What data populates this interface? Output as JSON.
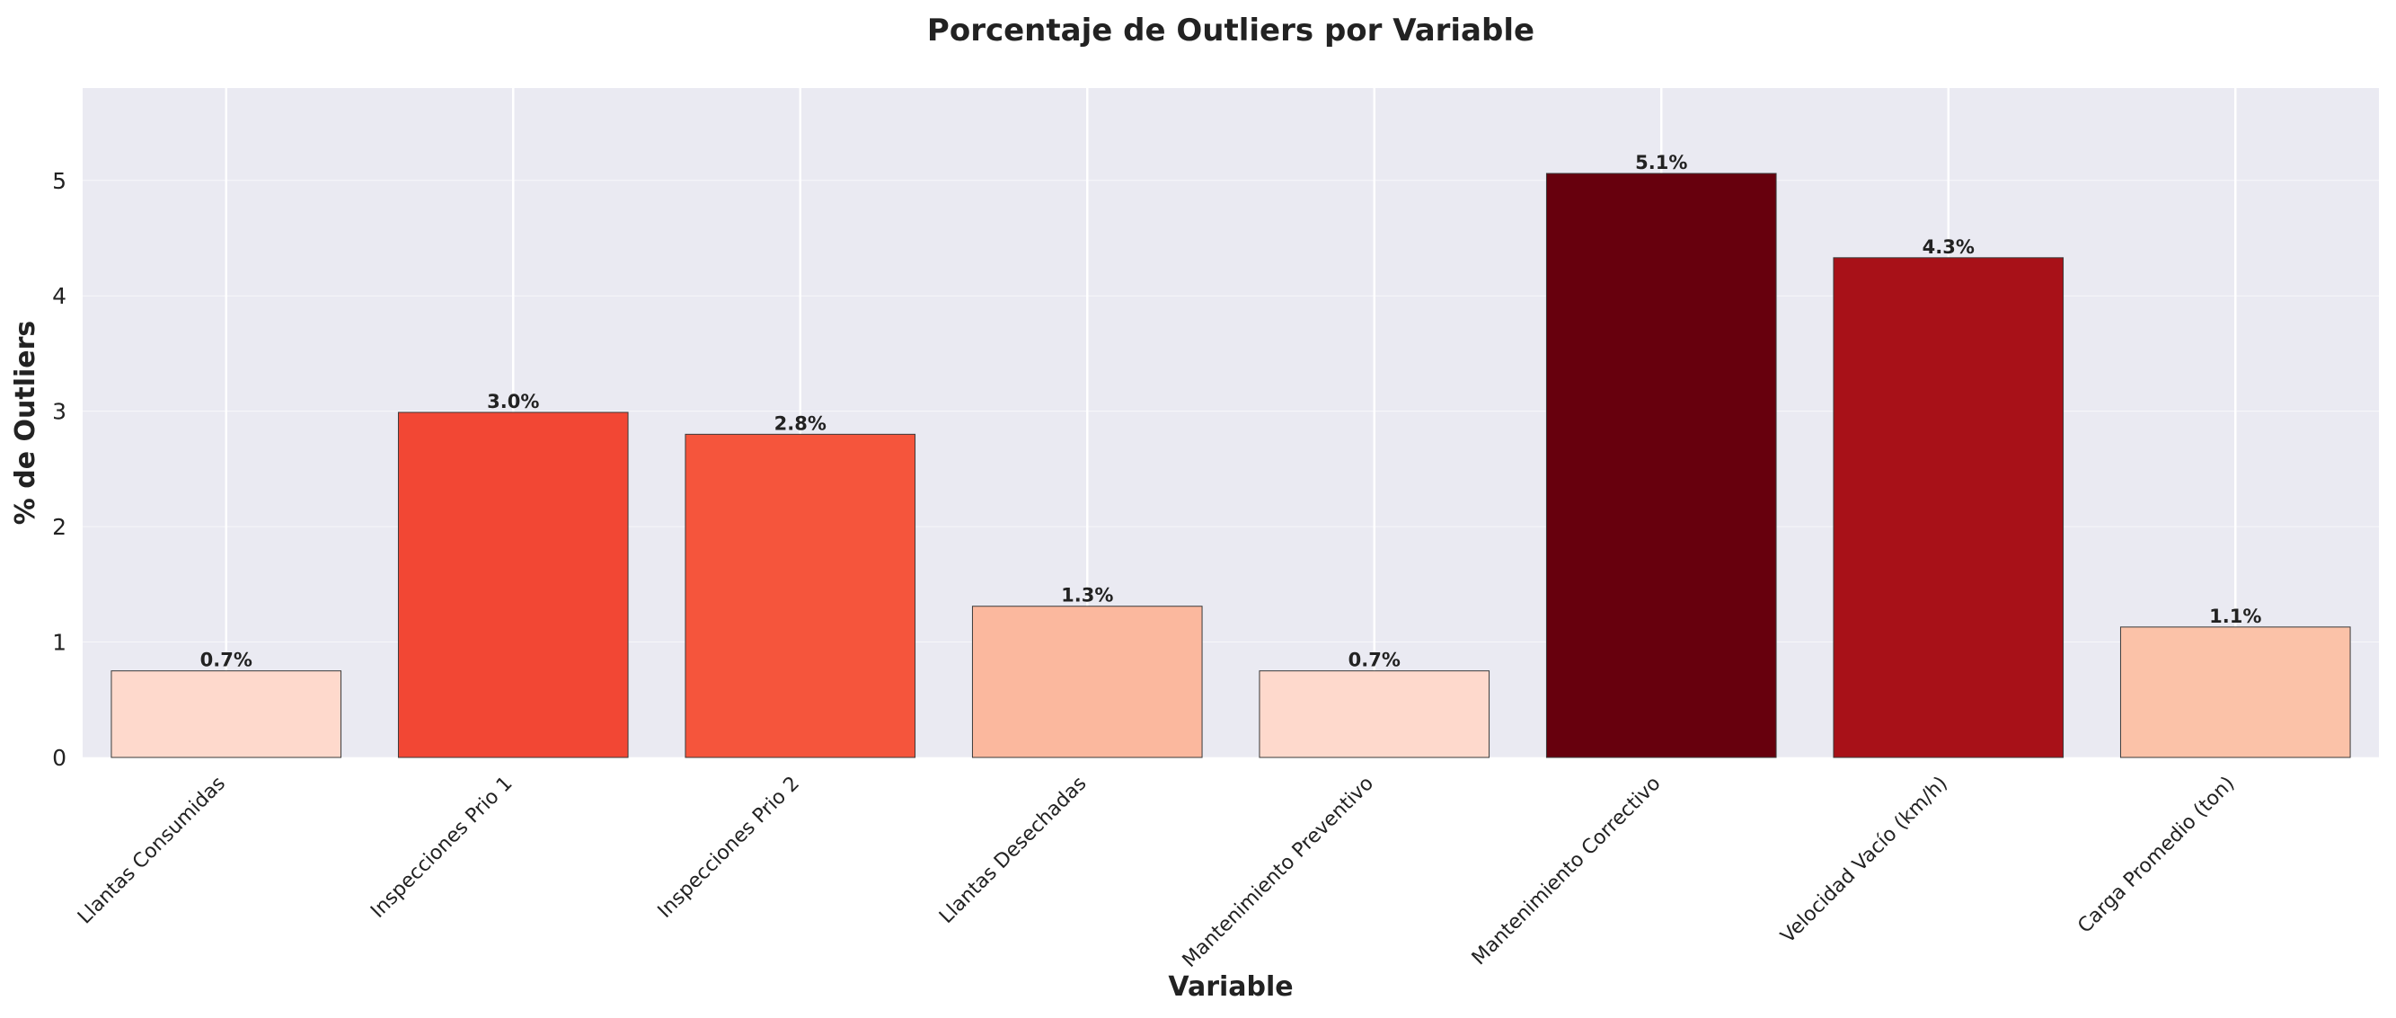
{
  "chart_data": {
    "type": "bar",
    "title": "Porcentaje de Outliers por Variable",
    "xlabel": "Variable",
    "ylabel": "% de Outliers",
    "categories": [
      "Llantas Consumidas",
      "Inspecciones Prio 1",
      "Inspecciones Prio 2",
      "Llantas Desechadas",
      "Mantenimiento Preventivo",
      "Mantenimiento Correctivo",
      "Velocidad Vacío (km/h)",
      "Carga Promedio (ton)"
    ],
    "values": [
      0.75,
      2.99,
      2.8,
      1.31,
      0.75,
      5.06,
      4.33,
      1.13
    ],
    "value_labels": [
      "0.7%",
      "3.0%",
      "2.8%",
      "1.3%",
      "0.7%",
      "5.1%",
      "4.3%",
      "1.1%"
    ],
    "colors": [
      "#fed9cc",
      "#f24734",
      "#f5553c",
      "#fbb89e",
      "#fed9cc",
      "#67000d",
      "#a81118",
      "#fbc2a8"
    ],
    "yticks": [
      0,
      1,
      2,
      3,
      4,
      5
    ],
    "ylim": [
      0,
      5.8
    ],
    "grid": true,
    "legend": "none"
  }
}
